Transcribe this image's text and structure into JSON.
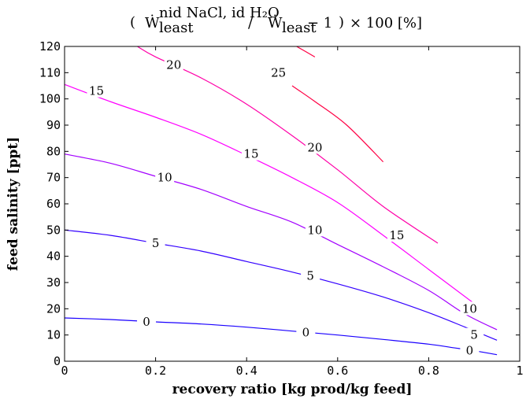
{
  "chart_data": {
    "type": "line",
    "title": "(Ẇleast^(nid NaCl, id H₂O) / Ẇleast − 1) × 100 [%]",
    "title_parts": {
      "w_symbol": "Ẇ",
      "sub_least": "least",
      "superscript": "nid NaCl, id H₂O",
      "mid": " / ",
      "minus_one": " − 1",
      "tail": " × 100  [%]"
    },
    "xlabel": "recovery ratio [kg prod/kg feed]",
    "ylabel": "feed salinity [ppt]",
    "xlim": [
      0,
      1
    ],
    "ylim": [
      0,
      120
    ],
    "xticks": [
      0,
      0.2,
      0.4,
      0.6,
      0.8,
      1
    ],
    "xtick_labels": [
      "0",
      "0.2",
      "0.4",
      "0.6",
      "0.8",
      "1"
    ],
    "yticks": [
      0,
      10,
      20,
      30,
      40,
      50,
      60,
      70,
      80,
      90,
      100,
      110,
      120
    ],
    "ytick_labels": [
      "0",
      "10",
      "20",
      "30",
      "40",
      "50",
      "60",
      "70",
      "80",
      "90",
      "100",
      "110",
      "120"
    ],
    "grid": false,
    "legend": "none",
    "series": [
      {
        "level": "0",
        "color": "#1a00ff",
        "points": [
          [
            0,
            16.5
          ],
          [
            0.1,
            15.9
          ],
          [
            0.2,
            15
          ],
          [
            0.3,
            14.2
          ],
          [
            0.4,
            13
          ],
          [
            0.5,
            11.5
          ],
          [
            0.6,
            10
          ],
          [
            0.7,
            8.3
          ],
          [
            0.8,
            6.5
          ],
          [
            0.86,
            5
          ],
          [
            0.9,
            4
          ],
          [
            0.95,
            2.5
          ]
        ],
        "labels": [
          {
            "text": "0",
            "x": 0.18,
            "y": 15
          },
          {
            "text": "0",
            "x": 0.53,
            "y": 11
          },
          {
            "text": "0",
            "x": 0.89,
            "y": 4
          }
        ]
      },
      {
        "level": "5",
        "color": "#3300ff",
        "points": [
          [
            0,
            50
          ],
          [
            0.1,
            48
          ],
          [
            0.2,
            45
          ],
          [
            0.3,
            42
          ],
          [
            0.4,
            38
          ],
          [
            0.5,
            34
          ],
          [
            0.6,
            29.5
          ],
          [
            0.7,
            24.5
          ],
          [
            0.8,
            18.5
          ],
          [
            0.88,
            13
          ],
          [
            0.95,
            8
          ]
        ],
        "labels": [
          {
            "text": "5",
            "x": 0.2,
            "y": 45
          },
          {
            "text": "5",
            "x": 0.54,
            "y": 32.5
          },
          {
            "text": "5",
            "x": 0.9,
            "y": 10
          }
        ]
      },
      {
        "level": "10",
        "color": "#a300ff",
        "points": [
          [
            0,
            79
          ],
          [
            0.1,
            75.5
          ],
          [
            0.2,
            70.5
          ],
          [
            0.3,
            65.5
          ],
          [
            0.4,
            59
          ],
          [
            0.5,
            53
          ],
          [
            0.6,
            44.5
          ],
          [
            0.7,
            36
          ],
          [
            0.8,
            27
          ],
          [
            0.88,
            18
          ],
          [
            0.95,
            12
          ]
        ],
        "labels": [
          {
            "text": "10",
            "x": 0.22,
            "y": 70
          },
          {
            "text": "10",
            "x": 0.55,
            "y": 50
          },
          {
            "text": "10",
            "x": 0.89,
            "y": 20
          }
        ]
      },
      {
        "level": "15",
        "color": "#ff00ff",
        "points": [
          [
            0,
            105.5
          ],
          [
            0.1,
            99
          ],
          [
            0.2,
            93
          ],
          [
            0.3,
            86.5
          ],
          [
            0.4,
            78.5
          ],
          [
            0.5,
            70
          ],
          [
            0.6,
            60.5
          ],
          [
            0.7,
            48
          ],
          [
            0.8,
            35
          ],
          [
            0.9,
            22
          ]
        ],
        "labels": [
          {
            "text": "15",
            "x": 0.07,
            "y": 103
          },
          {
            "text": "15",
            "x": 0.41,
            "y": 79
          },
          {
            "text": "15",
            "x": 0.73,
            "y": 48
          }
        ]
      },
      {
        "level": "20",
        "color": "#ff00a8",
        "points": [
          [
            0.16,
            120
          ],
          [
            0.2,
            116
          ],
          [
            0.3,
            108
          ],
          [
            0.4,
            98
          ],
          [
            0.5,
            86
          ],
          [
            0.6,
            73
          ],
          [
            0.7,
            59
          ],
          [
            0.82,
            45
          ]
        ],
        "labels": [
          {
            "text": "20",
            "x": 0.24,
            "y": 113
          },
          {
            "text": "20",
            "x": 0.55,
            "y": 81.5
          }
        ]
      },
      {
        "level": "25",
        "color": "#ff0044",
        "points": [
          [
            0.51,
            120
          ],
          [
            0.55,
            116
          ]
        ],
        "segments": [
          [
            [
              0.51,
              120
            ],
            [
              0.55,
              116
            ]
          ],
          [
            [
              0.5,
              105
            ],
            [
              0.55,
              99
            ],
            [
              0.62,
              90
            ],
            [
              0.7,
              76
            ]
          ]
        ],
        "labels": [
          {
            "text": "25",
            "x": 0.47,
            "y": 110
          }
        ]
      }
    ]
  }
}
